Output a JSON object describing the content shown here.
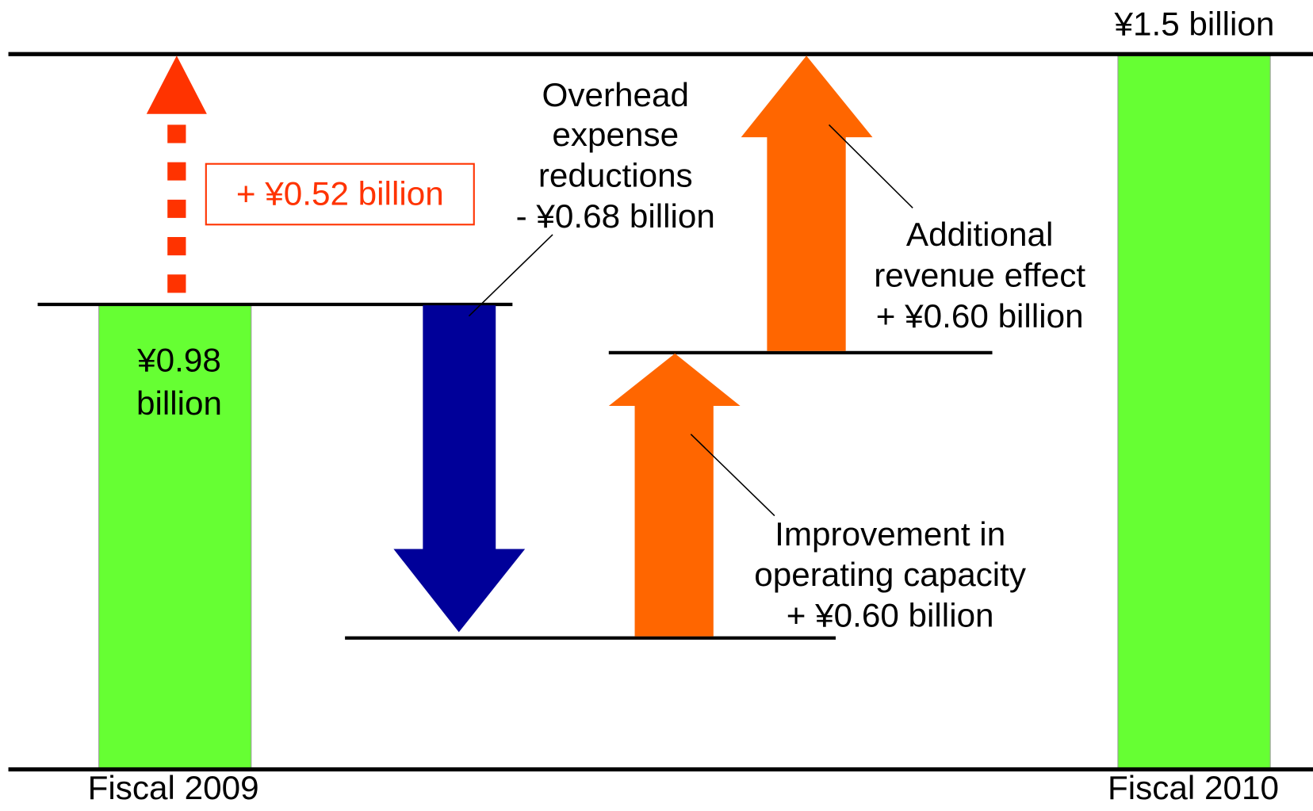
{
  "fiscal_2009": "Fiscal 2009",
  "fiscal_2010": "Fiscal 2010",
  "start_value": [
    "¥0.98",
    "billion"
  ],
  "end_value": "¥1.5 billion",
  "total_change": "+ ¥0.52 billion",
  "overhead": [
    "Overhead",
    "expense",
    "reductions",
    "- ¥0.68 billion"
  ],
  "revenue": [
    "Additional",
    "revenue effect",
    "+ ¥0.60 billion"
  ],
  "capacity": [
    "Improvement in",
    "operating capacity",
    "+ ¥0.60 billion"
  ]
}
